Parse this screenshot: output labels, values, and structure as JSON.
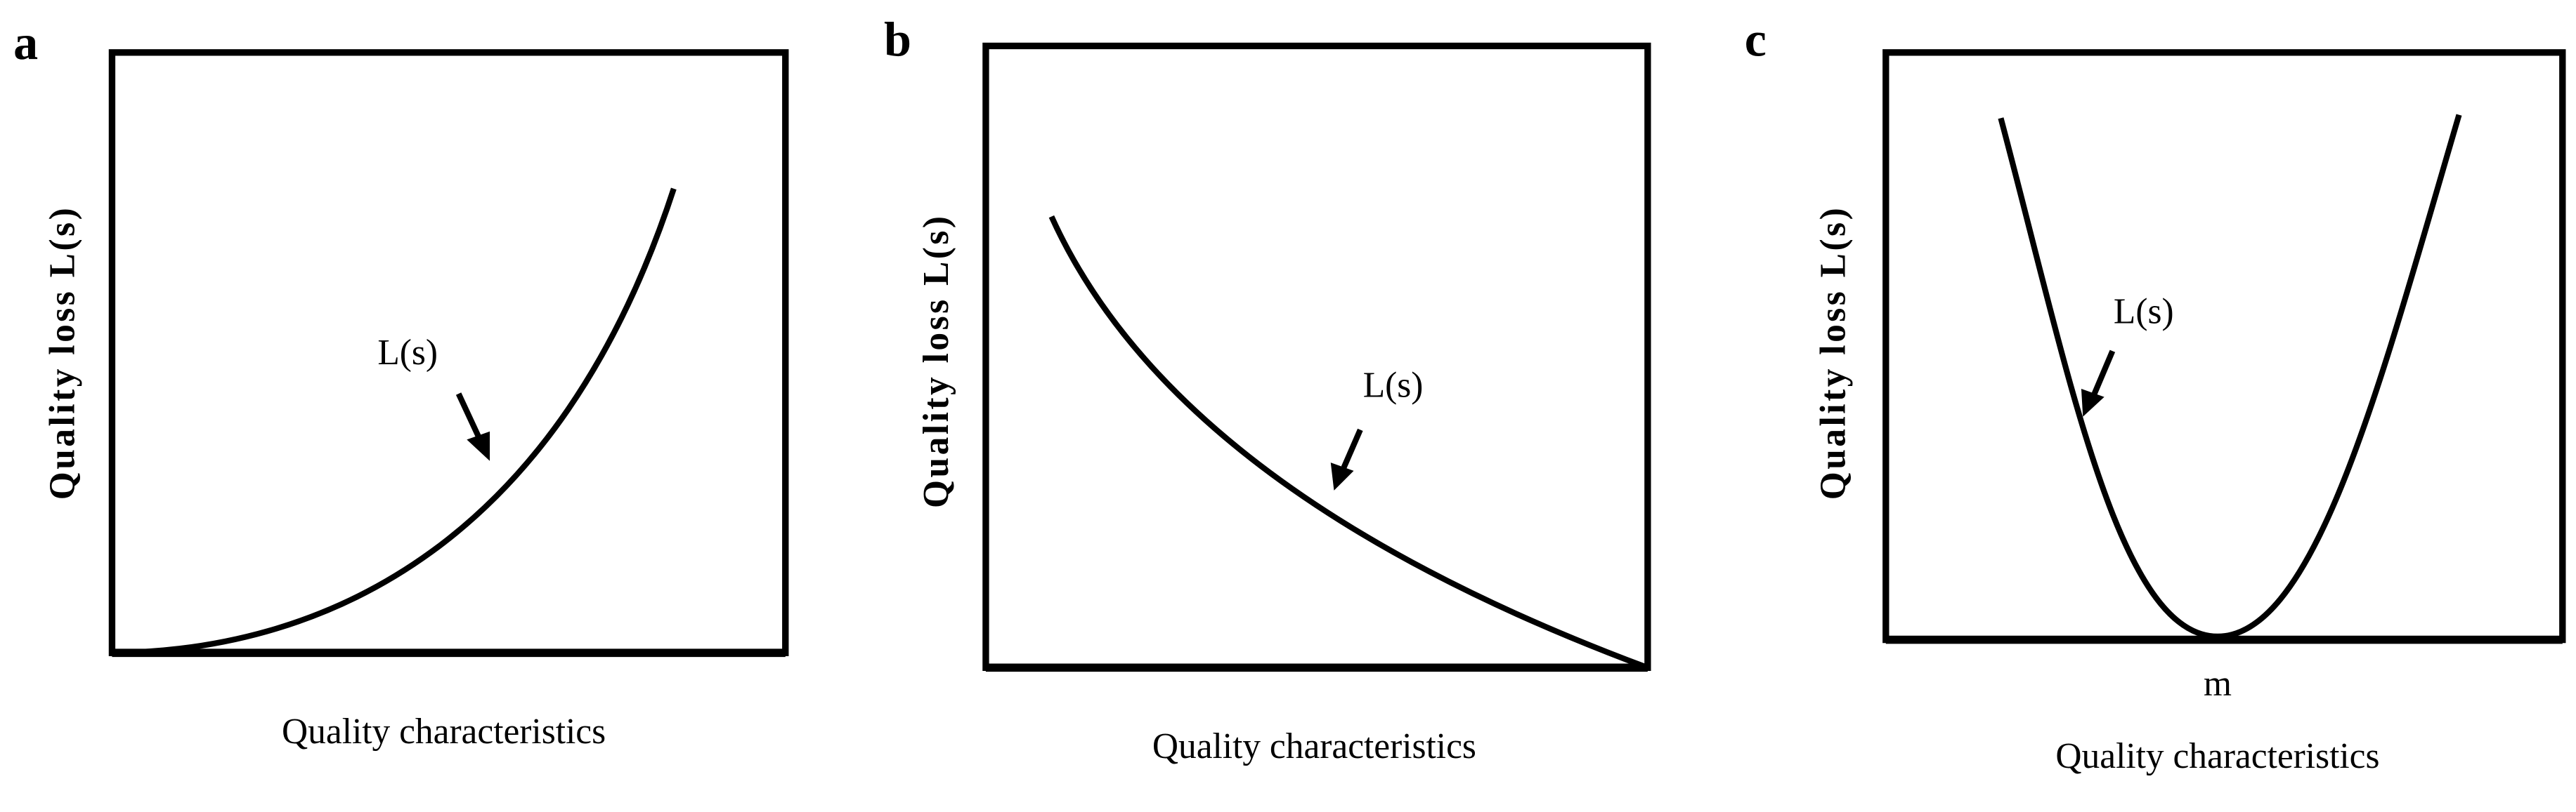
{
  "panels": [
    {
      "label": "a",
      "y_label": "Quality loss L(s)",
      "x_label": "Quality characteristics",
      "curve_label": "L(s)"
    },
    {
      "label": "b",
      "y_label": "Quality loss L(s)",
      "x_label": "Quality characteristics",
      "curve_label": "L(s)"
    },
    {
      "label": "c",
      "y_label": "Quality loss L(s)",
      "x_label": "Quality characteristics",
      "curve_label": "L(s)",
      "x_marker": "m"
    }
  ]
}
